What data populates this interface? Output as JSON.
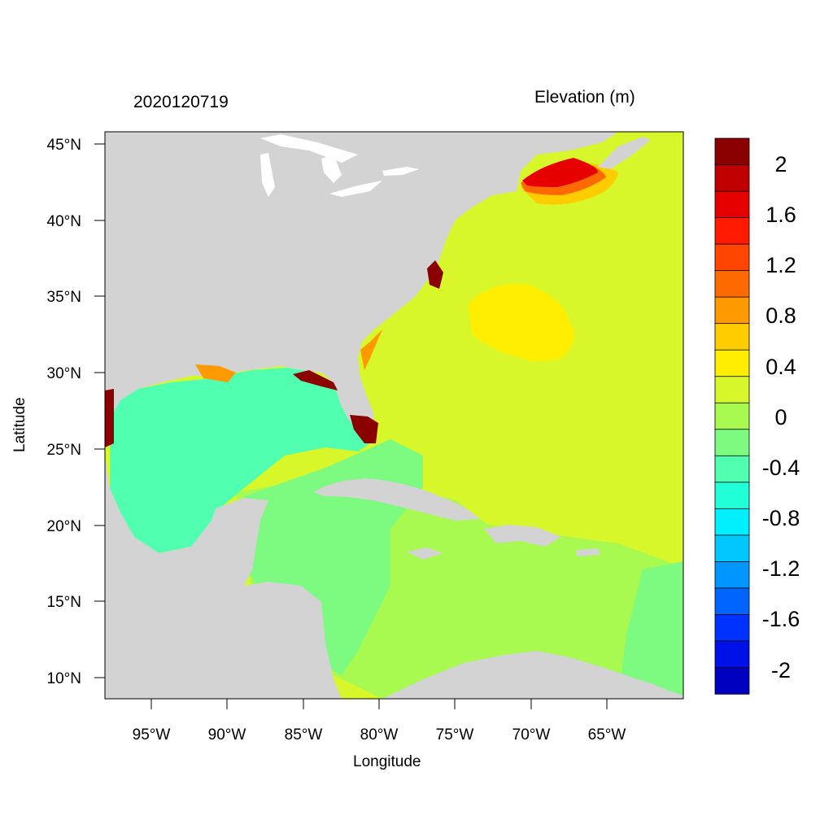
{
  "titles": {
    "left": "2020120719",
    "right": "Elevation (m)"
  },
  "axes": {
    "x_title": "Longitude",
    "y_title": "Latitude",
    "x_ticks": [
      "95°W",
      "90°W",
      "85°W",
      "80°W",
      "75°W",
      "70°W",
      "65°W"
    ],
    "y_ticks": [
      "45°N",
      "40°N",
      "35°N",
      "30°N",
      "25°N",
      "20°N",
      "15°N",
      "10°N"
    ]
  },
  "colorbar": {
    "labels": [
      "2",
      "1.6",
      "1.2",
      "0.8",
      "0.4",
      "0",
      "-0.4",
      "-0.8",
      "-1.2",
      "-1.6",
      "-2"
    ],
    "colors_top_to_bottom": [
      "#8b0000",
      "#c00000",
      "#e60000",
      "#ff1a00",
      "#ff4500",
      "#ff6a00",
      "#ff9900",
      "#ffcc00",
      "#ffee00",
      "#d8f72a",
      "#a8fa50",
      "#7dfa80",
      "#50ffb0",
      "#20ffd8",
      "#00f0ff",
      "#00c8ff",
      "#0096ff",
      "#0064ff",
      "#0032ff",
      "#0010e8",
      "#0000c0"
    ]
  },
  "map": {
    "land_color": "#d3d3d3",
    "water_color": "#ffffff"
  }
}
